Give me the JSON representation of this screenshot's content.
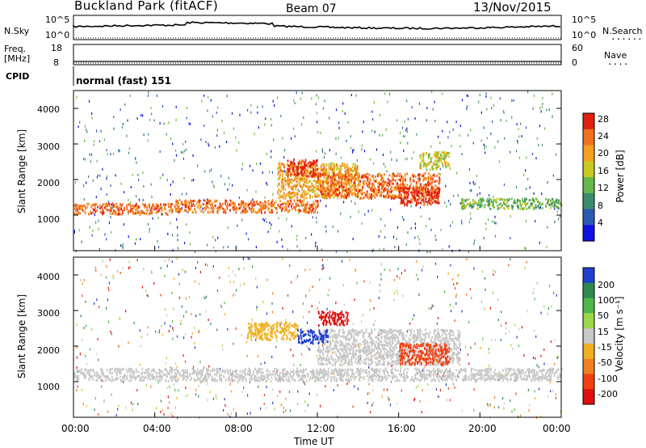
{
  "header": {
    "station": "Buckland Park (fitACF)",
    "beam": "Beam 07",
    "date": "13/Nov/2015"
  },
  "meta_panel": {
    "nsky_label": "N.Sky",
    "nsky_ticks": [
      "10^5",
      "10^0"
    ],
    "nsearch_label": "N.Search",
    "freq_label_1": "Freq.",
    "freq_label_2": "[MHz]",
    "freq_ticks": [
      "18",
      "8"
    ],
    "nave_label": "Nave",
    "nave_ticks": [
      "60",
      "0"
    ],
    "cpid_label": "CPID",
    "cpid_value": "normal (fast) 151"
  },
  "chart_data": [
    {
      "type": "heatmap",
      "name": "power",
      "ylabel": "Slant Range [km]",
      "y_ticks": [
        1000,
        2000,
        3000,
        4000
      ],
      "ylim": [
        0,
        4500
      ],
      "xlim": [
        0,
        24
      ],
      "colorbar_label": "Power [dB]",
      "colorbar_ticks": [
        "4",
        "8",
        "12",
        "16",
        "20",
        "24",
        "28"
      ],
      "colorbar_colors": [
        "#1010e0",
        "#2a5ab4",
        "#3c8c6e",
        "#66b84a",
        "#c8c820",
        "#f5a020",
        "#f07020",
        "#e02010"
      ],
      "echo_bands": [
        {
          "t0": 0,
          "t1": 5,
          "r0": 1050,
          "r1": 1350,
          "level": 6
        },
        {
          "t0": 5,
          "t1": 12,
          "r0": 1100,
          "r1": 1450,
          "level": 6
        },
        {
          "t0": 10,
          "t1": 14,
          "r0": 1500,
          "r1": 2500,
          "level": 5
        },
        {
          "t0": 10.5,
          "t1": 12,
          "r0": 2100,
          "r1": 2600,
          "level": 7
        },
        {
          "t0": 12,
          "t1": 18,
          "r0": 1500,
          "r1": 2200,
          "level": 6
        },
        {
          "t0": 16,
          "t1": 18,
          "r0": 1300,
          "r1": 1800,
          "level": 7
        },
        {
          "t0": 17,
          "t1": 18.5,
          "r0": 2300,
          "r1": 2800,
          "level": 4
        },
        {
          "t0": 19,
          "t1": 24,
          "r0": 1200,
          "r1": 1500,
          "level": 3
        }
      ]
    },
    {
      "type": "heatmap",
      "name": "velocity",
      "ylabel": "Slant Range [km]",
      "y_ticks": [
        1000,
        2000,
        3000,
        4000
      ],
      "ylim": [
        0,
        4500
      ],
      "xlim": [
        0,
        24
      ],
      "colorbar_label": "Velocity [m s⁻¹]",
      "colorbar_ticks": [
        "200",
        "100",
        "50",
        "15",
        "-15",
        "-50",
        "-100",
        "-200"
      ],
      "colorbar_colors": [
        "#2040d0",
        "#2f8a4f",
        "#4cb84c",
        "#9ad84a",
        "#c8c8c8",
        "#f0b020",
        "#f08020",
        "#f04010",
        "#e01010"
      ],
      "echo_bands": [
        {
          "t0": 0,
          "t1": 24,
          "r0": 1050,
          "r1": 1400,
          "level": "ground"
        },
        {
          "t0": 12,
          "t1": 19,
          "r0": 1500,
          "r1": 2500,
          "level": "ground"
        },
        {
          "t0": 16,
          "t1": 18.5,
          "r0": 1500,
          "r1": 2100,
          "level": "-100"
        },
        {
          "t0": 11,
          "t1": 12.5,
          "r0": 2100,
          "r1": 2500,
          "level": "200"
        },
        {
          "t0": 12,
          "t1": 13.5,
          "r0": 2600,
          "r1": 3000,
          "level": "-200"
        },
        {
          "t0": 8.5,
          "t1": 11,
          "r0": 2200,
          "r1": 2700,
          "level": "-50"
        }
      ]
    }
  ],
  "x_axis": {
    "label": "Time UT",
    "ticks": [
      "00:00",
      "04:00",
      "08:00",
      "12:00",
      "16:00",
      "20:00",
      "00:00"
    ]
  }
}
